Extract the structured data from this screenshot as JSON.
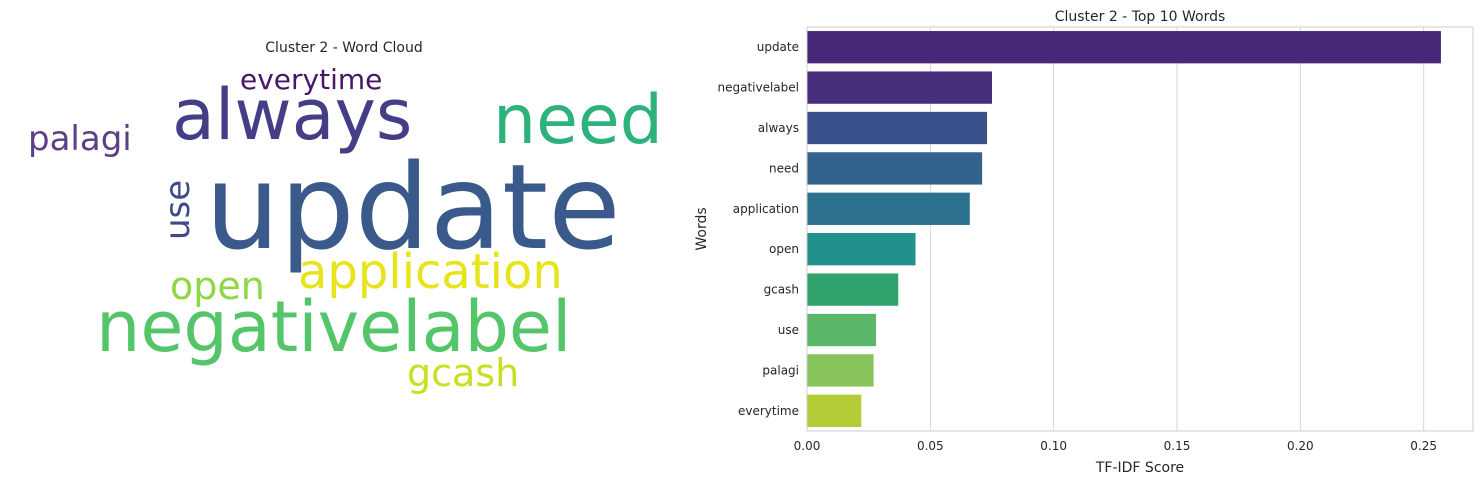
{
  "chart_data": [
    {
      "type": "wordcloud",
      "title": "Cluster 2 - Word Cloud",
      "words": [
        {
          "text": "update",
          "size": 1.0,
          "orientation": "horizontal",
          "color": "#3b5a8c"
        },
        {
          "text": "negativelabel",
          "size": 0.6,
          "orientation": "horizontal",
          "color": "#54c568"
        },
        {
          "text": "always",
          "size": 0.6,
          "orientation": "horizontal",
          "color": "#433e85"
        },
        {
          "text": "need",
          "size": 0.58,
          "orientation": "horizontal",
          "color": "#2db27d"
        },
        {
          "text": "application",
          "size": 0.44,
          "orientation": "horizontal",
          "color": "#e7e419"
        },
        {
          "text": "open",
          "size": 0.34,
          "orientation": "horizontal",
          "color": "#8fd744"
        },
        {
          "text": "gcash",
          "size": 0.34,
          "orientation": "horizontal",
          "color": "#c8e020"
        },
        {
          "text": "use",
          "size": 0.3,
          "orientation": "vertical",
          "color": "#3e4a89"
        },
        {
          "text": "palagi",
          "size": 0.3,
          "orientation": "horizontal",
          "color": "#5c3f87"
        },
        {
          "text": "everytime",
          "size": 0.26,
          "orientation": "horizontal",
          "color": "#481769"
        }
      ]
    },
    {
      "type": "bar",
      "orientation": "horizontal",
      "title": "Cluster 2 - Top 10 Words",
      "xlabel": "TF-IDF Score",
      "ylabel": "Words",
      "categories": [
        "update",
        "negativelabel",
        "always",
        "need",
        "application",
        "open",
        "gcash",
        "use",
        "palagi",
        "everytime"
      ],
      "values": [
        0.257,
        0.075,
        0.073,
        0.071,
        0.066,
        0.044,
        0.037,
        0.028,
        0.027,
        0.022
      ],
      "colors": [
        "#482878",
        "#472f7d",
        "#3b518b",
        "#33638d",
        "#2c728e",
        "#21918c",
        "#2fa36b",
        "#5ab769",
        "#86c35a",
        "#b5cb35"
      ],
      "xlim": [
        0,
        0.27
      ],
      "xticks": [
        "0.00",
        "0.05",
        "0.10",
        "0.15",
        "0.20",
        "0.25"
      ],
      "grid": "vertical"
    }
  ]
}
